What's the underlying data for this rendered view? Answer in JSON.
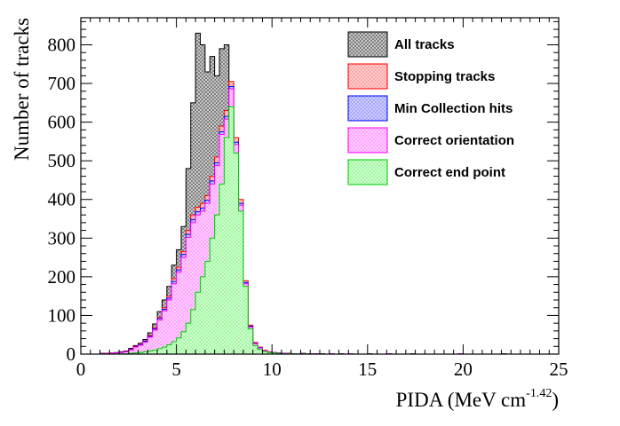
{
  "chart_data": {
    "type": "histogram",
    "xlabel": "PIDA (MeV cm",
    "xlabel_sup": "-1.42",
    "xlabel_close": ")",
    "ylabel": "Number of tracks",
    "xlim": [
      0,
      25
    ],
    "ylim": [
      0,
      870
    ],
    "x_ticks": [
      0,
      5,
      10,
      15,
      20,
      25
    ],
    "y_ticks": [
      0,
      100,
      200,
      300,
      400,
      500,
      600,
      700,
      800
    ],
    "bin_width": 0.25,
    "grid": false,
    "legend_position": "top-right",
    "bin_starts": [
      0.0,
      0.25,
      0.5,
      0.75,
      1.0,
      1.25,
      1.5,
      1.75,
      2.0,
      2.25,
      2.5,
      2.75,
      3.0,
      3.25,
      3.5,
      3.75,
      4.0,
      4.25,
      4.5,
      4.75,
      5.0,
      5.25,
      5.5,
      5.75,
      6.0,
      6.25,
      6.5,
      6.75,
      7.0,
      7.25,
      7.5,
      7.75,
      8.0,
      8.25,
      8.5,
      8.75,
      9.0,
      9.25,
      9.5,
      9.75,
      10.0,
      10.25,
      10.5,
      10.75,
      11.0,
      11.25,
      11.5,
      11.75,
      12.0,
      12.25,
      12.5,
      12.75,
      13.0,
      13.25,
      13.5,
      13.75,
      14.0,
      14.25,
      14.5,
      14.75,
      15.0,
      15.25,
      15.5,
      15.75,
      16.0,
      16.25,
      16.5,
      16.75,
      17.0,
      17.25,
      17.5,
      17.75,
      18.0,
      18.25,
      18.5,
      18.75,
      19.0,
      19.25,
      19.5,
      19.75,
      20.0,
      20.25,
      20.5,
      20.75,
      21.0,
      21.25,
      21.5,
      21.75,
      22.0,
      22.25,
      22.5,
      22.75,
      23.0,
      23.25,
      23.5,
      23.75,
      24.0,
      24.25,
      24.5,
      24.75
    ],
    "series": [
      {
        "name": "All tracks",
        "line_color": "#000000",
        "fill_color": "#d0d0d0",
        "fill_pattern": "crosshatch",
        "values": [
          0,
          0,
          0,
          0,
          2,
          2,
          3,
          4,
          6,
          8,
          15,
          22,
          28,
          38,
          55,
          78,
          110,
          140,
          175,
          230,
          270,
          330,
          480,
          650,
          830,
          800,
          730,
          770,
          720,
          790,
          800,
          610,
          410,
          190,
          80,
          35,
          20,
          12,
          8,
          5,
          4,
          3,
          2,
          2,
          1,
          1,
          2,
          1,
          1,
          1,
          1,
          0,
          1,
          0,
          1,
          0,
          1,
          0,
          0,
          0,
          1,
          0,
          0,
          0,
          1,
          0,
          0,
          0,
          0,
          1,
          0,
          0,
          0,
          0,
          0,
          0,
          0,
          0,
          0,
          1,
          0,
          0,
          0,
          0,
          0,
          0,
          0,
          0,
          1,
          0,
          0,
          0,
          0,
          0,
          0,
          0,
          0,
          0,
          0,
          0
        ]
      },
      {
        "name": "Stopping tracks",
        "line_color": "#ff0000",
        "fill_color": "#ffcccc",
        "fill_pattern": "dots",
        "values": [
          0,
          0,
          0,
          0,
          1,
          2,
          2,
          3,
          5,
          7,
          13,
          20,
          25,
          34,
          48,
          68,
          95,
          120,
          150,
          195,
          225,
          265,
          320,
          360,
          380,
          390,
          410,
          460,
          510,
          590,
          630,
          705,
          560,
          400,
          190,
          75,
          30,
          18,
          10,
          6,
          4,
          3,
          2,
          2,
          1,
          1,
          1,
          1,
          1,
          1,
          0,
          0,
          1,
          0,
          0,
          0,
          1,
          0,
          0,
          0,
          0,
          0,
          0,
          0,
          1,
          0,
          0,
          0,
          0,
          0,
          0,
          0,
          0,
          0,
          0,
          0,
          0,
          0,
          0,
          1,
          0,
          0,
          0,
          0,
          0,
          0,
          0,
          0,
          0,
          0,
          0,
          0,
          0,
          0,
          0,
          0,
          0,
          0,
          0,
          0
        ]
      },
      {
        "name": "Min Collection hits",
        "line_color": "#0000ff",
        "fill_color": "#ccccff",
        "fill_pattern": "dots",
        "values": [
          0,
          0,
          0,
          0,
          1,
          1,
          2,
          3,
          5,
          6,
          12,
          19,
          24,
          33,
          46,
          65,
          92,
          116,
          145,
          188,
          218,
          258,
          310,
          348,
          368,
          378,
          398,
          448,
          495,
          575,
          615,
          692,
          548,
          390,
          185,
          72,
          28,
          17,
          9,
          5,
          4,
          3,
          2,
          1,
          1,
          1,
          1,
          1,
          1,
          1,
          0,
          0,
          1,
          0,
          0,
          0,
          1,
          0,
          0,
          0,
          0,
          0,
          0,
          0,
          1,
          0,
          0,
          0,
          0,
          0,
          0,
          0,
          0,
          0,
          0,
          0,
          0,
          0,
          0,
          1,
          0,
          0,
          0,
          0,
          0,
          0,
          0,
          0,
          0,
          0,
          0,
          0,
          0,
          0,
          0,
          0,
          0,
          0,
          0,
          0
        ]
      },
      {
        "name": "Correct orientation",
        "line_color": "#ff00ff",
        "fill_color": "#ffccff",
        "fill_pattern": "dots",
        "values": [
          0,
          0,
          0,
          0,
          1,
          1,
          2,
          3,
          4,
          6,
          11,
          18,
          23,
          31,
          44,
          62,
          88,
          112,
          140,
          182,
          212,
          250,
          302,
          340,
          360,
          370,
          390,
          440,
          488,
          568,
          608,
          686,
          542,
          385,
          182,
          70,
          27,
          16,
          9,
          5,
          4,
          3,
          2,
          1,
          1,
          1,
          1,
          1,
          1,
          1,
          0,
          0,
          1,
          0,
          0,
          0,
          1,
          0,
          0,
          0,
          0,
          0,
          0,
          0,
          1,
          0,
          0,
          0,
          0,
          0,
          0,
          0,
          0,
          0,
          0,
          0,
          0,
          0,
          0,
          1,
          0,
          0,
          0,
          0,
          0,
          0,
          0,
          0,
          0,
          0,
          0,
          0,
          0,
          0,
          0,
          0,
          0,
          0,
          0,
          0
        ]
      },
      {
        "name": "Correct end point",
        "line_color": "#00cc00",
        "fill_color": "#ccffcc",
        "fill_pattern": "dots",
        "values": [
          0,
          0,
          0,
          0,
          0,
          0,
          0,
          0,
          1,
          1,
          2,
          3,
          4,
          6,
          8,
          10,
          14,
          18,
          24,
          32,
          42,
          58,
          80,
          115,
          160,
          200,
          240,
          300,
          360,
          440,
          560,
          640,
          520,
          370,
          175,
          65,
          22,
          12,
          7,
          4,
          3,
          2,
          1,
          1,
          1,
          1,
          0,
          1,
          0,
          0,
          0,
          0,
          0,
          0,
          0,
          0,
          0,
          0,
          0,
          0,
          0,
          0,
          0,
          0,
          0,
          0,
          0,
          0,
          0,
          0,
          0,
          0,
          0,
          0,
          0,
          0,
          0,
          0,
          0,
          0,
          0,
          0,
          0,
          0,
          0,
          0,
          0,
          0,
          0,
          0,
          0,
          0,
          0,
          0,
          0,
          0,
          0,
          0,
          0,
          0
        ]
      }
    ]
  }
}
